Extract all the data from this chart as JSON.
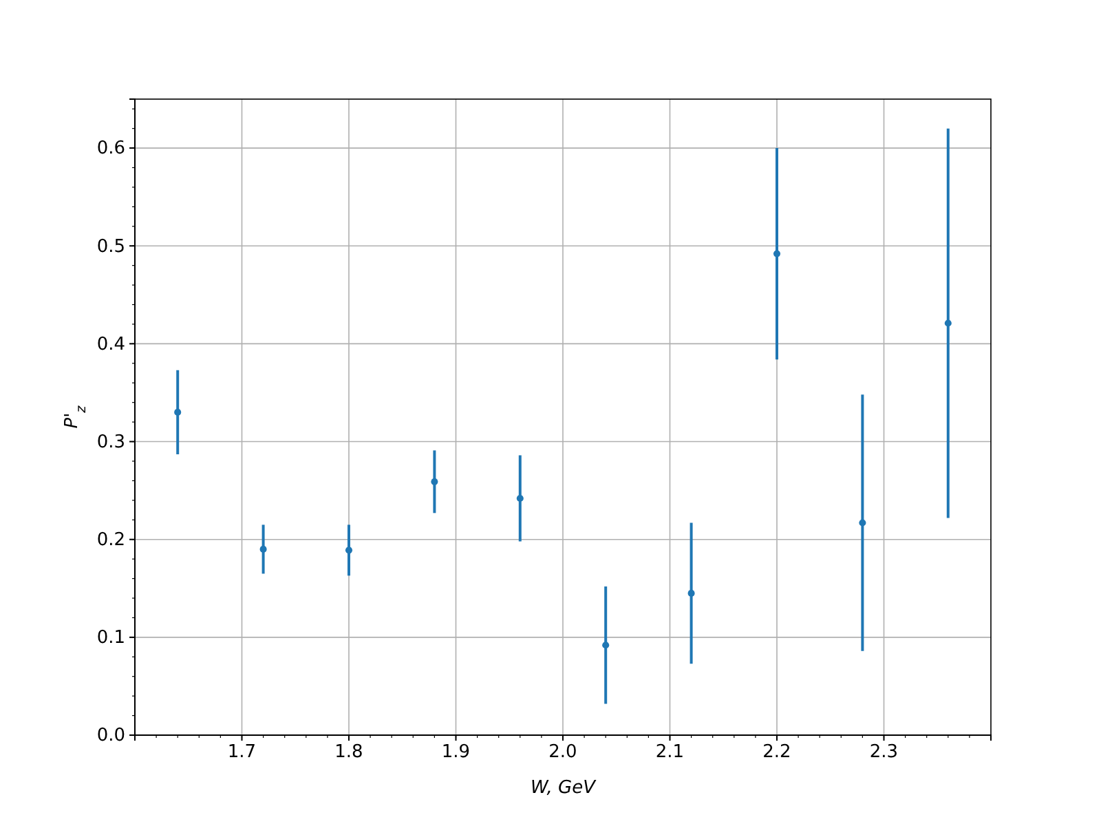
{
  "chart_data": {
    "type": "scatter",
    "xlabel": "W, GeV",
    "ylabel": "P'$_{z}$",
    "x": [
      1.64,
      1.72,
      1.8,
      1.88,
      1.96,
      2.04,
      2.12,
      2.2,
      2.28,
      2.36
    ],
    "series": [
      {
        "color": "#1f77b4",
        "values": [
          0.33,
          0.19,
          0.189,
          0.259,
          0.242,
          0.092,
          0.145,
          0.492,
          0.217,
          0.421
        ],
        "errors": [
          0.043,
          0.025,
          0.026,
          0.032,
          0.044,
          0.06,
          0.072,
          0.108,
          0.131,
          0.199
        ]
      }
    ],
    "xlim": [
      1.6,
      2.4
    ],
    "xticks": [
      1.7,
      1.8,
      1.9,
      {
        "value": 2,
        "label": "2.0"
      },
      2.1,
      2.2,
      2.3
    ],
    "ylim": [
      0,
      0.65
    ],
    "yticks": [
      {
        "value": 0,
        "label": "0.0"
      },
      0.1,
      0.2,
      0.3,
      0.4,
      0.5,
      0.6
    ],
    "grid": true,
    "marker": "circle"
  }
}
